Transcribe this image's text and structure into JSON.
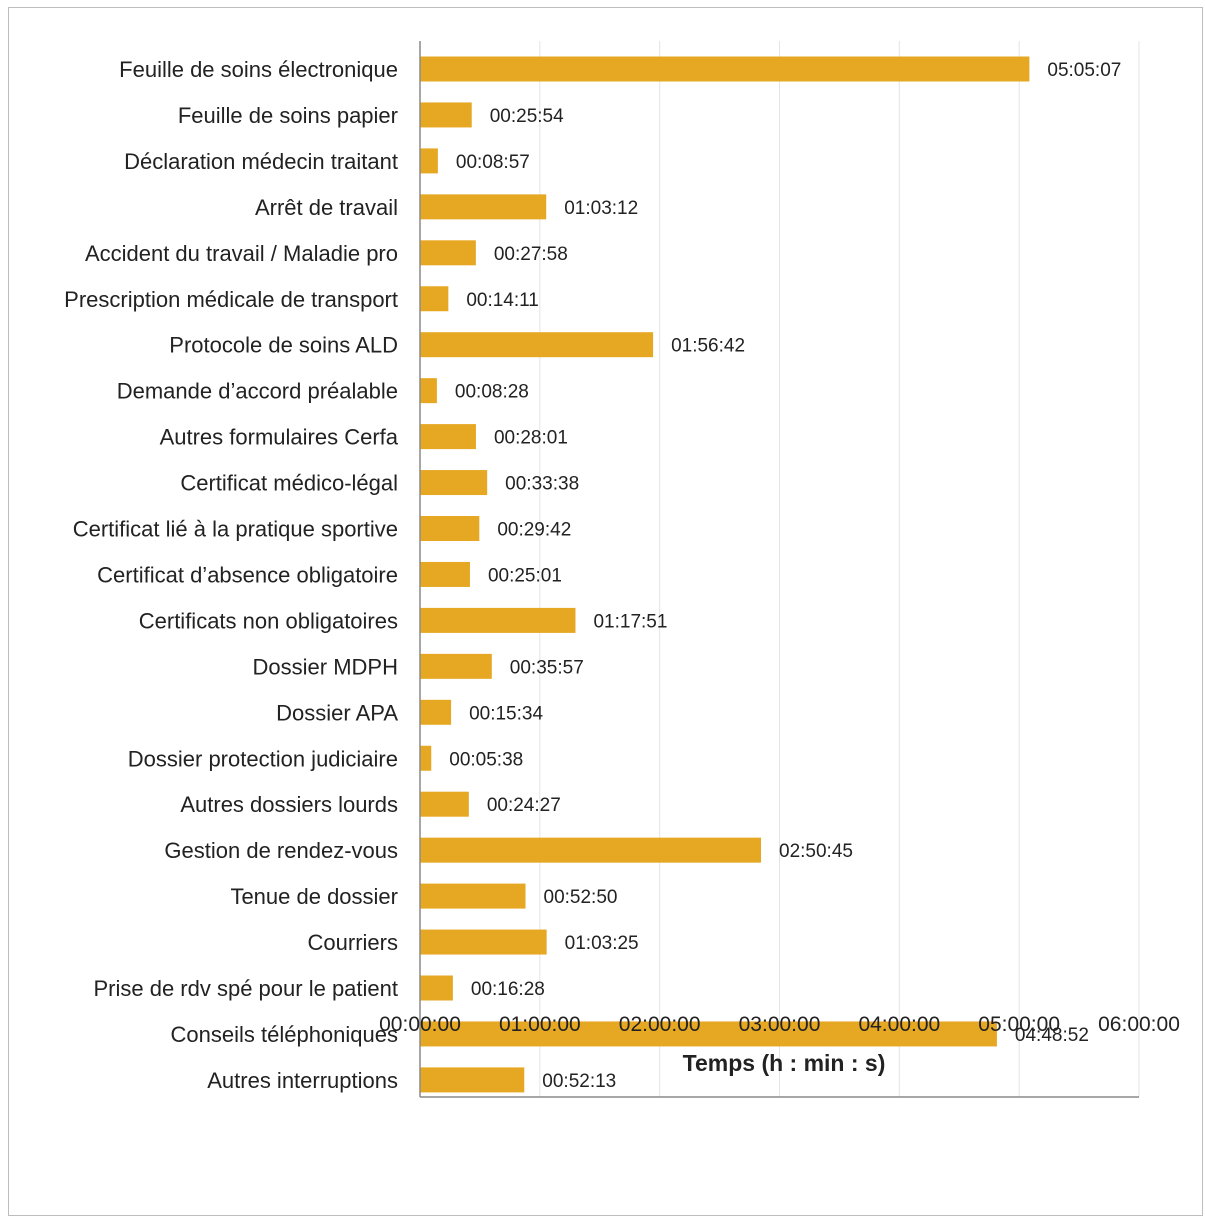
{
  "chart_data": {
    "type": "bar",
    "orientation": "horizontal",
    "title": "",
    "xlabel": "Temps (h : min : s)",
    "ylabel": "",
    "x_unit": "seconds",
    "xlim": [
      0,
      21600
    ],
    "xticks": [
      {
        "value": 0,
        "label": "00:00:00"
      },
      {
        "value": 3600,
        "label": "01:00:00"
      },
      {
        "value": 7200,
        "label": "02:00:00"
      },
      {
        "value": 10800,
        "label": "03:00:00"
      },
      {
        "value": 14400,
        "label": "04:00:00"
      },
      {
        "value": 18000,
        "label": "05:00:00"
      },
      {
        "value": 21600,
        "label": "06:00:00"
      }
    ],
    "grid": true,
    "bar_color": "#E6A823",
    "categories": [
      "Feuille de soins électronique",
      "Feuille de soins papier",
      "Déclaration médecin traitant",
      "Arrêt de travail",
      "Accident du travail / Maladie pro",
      "Prescription médicale de transport",
      "Protocole de soins ALD",
      "Demande d’accord préalable",
      "Autres formulaires Cerfa",
      "Certificat médico-légal",
      "Certificat lié à la pratique sportive",
      "Certificat d’absence obligatoire",
      "Certificats non obligatoires",
      "Dossier MDPH",
      "Dossier APA",
      "Dossier protection judiciaire",
      "Autres dossiers lourds",
      "Gestion de rendez-vous",
      "Tenue de dossier",
      "Courriers",
      "Prise de rdv spé pour le patient",
      "Conseils téléphoniques",
      "Autres interruptions"
    ],
    "values": [
      18307,
      1554,
      537,
      3792,
      1678,
      851,
      7002,
      508,
      1681,
      2018,
      1782,
      1501,
      4671,
      2157,
      934,
      338,
      1467,
      10245,
      3170,
      3805,
      988,
      17332,
      3133
    ],
    "value_labels": [
      "05:05:07",
      "00:25:54",
      "00:08:57",
      "01:03:12",
      "00:27:58",
      "00:14:11",
      "01:56:42",
      "00:08:28",
      "00:28:01",
      "00:33:38",
      "00:29:42",
      "00:25:01",
      "01:17:51",
      "00:35:57",
      "00:15:34",
      "00:05:38",
      "00:24:27",
      "02:50:45",
      "00:52:50",
      "01:03:25",
      "00:16:28",
      "04:48:52",
      "00:52:13"
    ]
  }
}
